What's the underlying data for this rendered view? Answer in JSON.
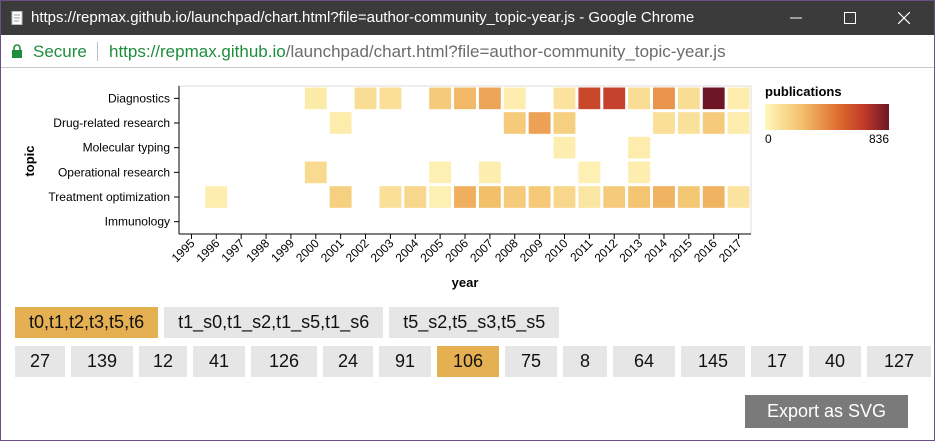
{
  "window": {
    "title": "https://repmax.github.io/launchpad/chart.html?file=author-community_topic-year.js - Google Chrome"
  },
  "address_bar": {
    "secure_label": "Secure",
    "url_origin": "https://repmax.github.io",
    "url_path": "/launchpad/chart.html?file=author-community_topic-year.js"
  },
  "colors": {
    "cell_low": "#fbefaf",
    "cell_mid": "#e4a751",
    "cell_high": "#6e1625",
    "selected_button": "#e5b051",
    "button": "#e6e6e6",
    "export_button": "#7a7a7a"
  },
  "chart_data": {
    "type": "heatmap",
    "xlabel": "year",
    "ylabel": "topic",
    "x": [
      "1995",
      "1996",
      "1997",
      "1998",
      "1999",
      "2000",
      "2001",
      "2002",
      "2003",
      "2004",
      "2005",
      "2006",
      "2007",
      "2008",
      "2009",
      "2010",
      "2011",
      "2012",
      "2013",
      "2014",
      "2015",
      "2016",
      "2017"
    ],
    "y": [
      "Diagnostics",
      "Drug-related research",
      "Molecular typing",
      "Operational research",
      "Treatment optimization",
      "Immunology"
    ],
    "values": [
      [
        null,
        null,
        null,
        null,
        null,
        60,
        null,
        120,
        110,
        null,
        200,
        270,
        330,
        50,
        null,
        90,
        620,
        640,
        120,
        380,
        120,
        836,
        50
      ],
      [
        null,
        null,
        null,
        null,
        null,
        null,
        50,
        null,
        null,
        null,
        null,
        null,
        null,
        200,
        340,
        180,
        null,
        null,
        null,
        110,
        100,
        200,
        50
      ],
      [
        null,
        null,
        null,
        null,
        null,
        null,
        null,
        null,
        null,
        null,
        null,
        null,
        null,
        null,
        null,
        40,
        null,
        null,
        50,
        null,
        null,
        null,
        null
      ],
      [
        null,
        null,
        null,
        null,
        null,
        130,
        null,
        null,
        null,
        null,
        30,
        null,
        40,
        null,
        null,
        null,
        30,
        null,
        40,
        null,
        null,
        null,
        null
      ],
      [
        null,
        40,
        null,
        null,
        null,
        null,
        180,
        null,
        110,
        150,
        30,
        300,
        250,
        200,
        210,
        150,
        80,
        200,
        230,
        290,
        220,
        290,
        90
      ],
      [
        null,
        null,
        null,
        null,
        null,
        null,
        null,
        null,
        null,
        null,
        null,
        null,
        null,
        null,
        null,
        null,
        null,
        null,
        null,
        null,
        null,
        null,
        null
      ]
    ],
    "value_range": [
      0,
      836
    ],
    "legend": {
      "title": "publications",
      "min_label": "0",
      "max_label": "836",
      "placement": "right"
    },
    "grid": false
  },
  "filters": {
    "groups": [
      {
        "label": "t0,t1,t2,t3,t5,t6",
        "selected": true
      },
      {
        "label": "t1_s0,t1_s2,t1_s5,t1_s6",
        "selected": false
      },
      {
        "label": "t5_s2,t5_s3,t5_s5",
        "selected": false
      }
    ],
    "communities": [
      {
        "label": "27",
        "selected": false
      },
      {
        "label": "139",
        "selected": false
      },
      {
        "label": "12",
        "selected": false
      },
      {
        "label": "41",
        "selected": false
      },
      {
        "label": "126",
        "selected": false
      },
      {
        "label": "24",
        "selected": false
      },
      {
        "label": "91",
        "selected": false
      },
      {
        "label": "106",
        "selected": true
      },
      {
        "label": "75",
        "selected": false
      },
      {
        "label": "8",
        "selected": false
      },
      {
        "label": "64",
        "selected": false
      },
      {
        "label": "145",
        "selected": false
      },
      {
        "label": "17",
        "selected": false
      },
      {
        "label": "40",
        "selected": false
      },
      {
        "label": "127",
        "selected": false
      }
    ]
  },
  "export_label": "Export as SVG"
}
